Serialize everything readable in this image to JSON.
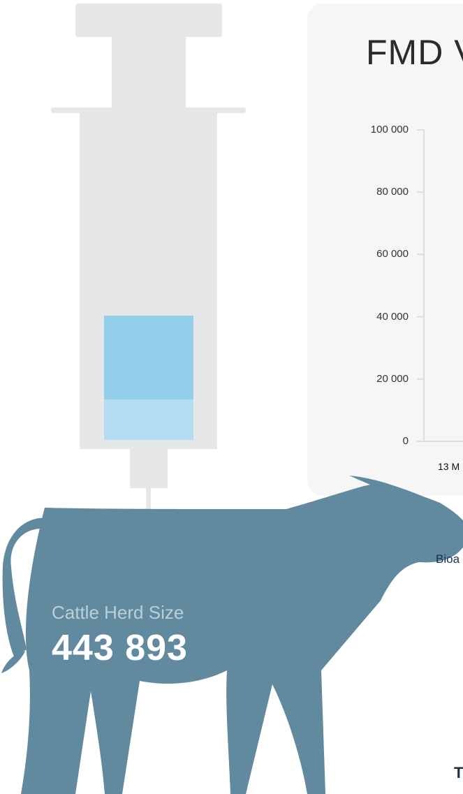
{
  "chart_data": {
    "type": "line",
    "title": "FMD V",
    "ylim": [
      0,
      100000
    ],
    "yticks": [
      0,
      20000,
      40000,
      60000,
      80000,
      100000
    ],
    "ytick_labels": [
      "0",
      "20 000",
      "40 000",
      "60 000",
      "80 000",
      "100 000"
    ],
    "x_tick_labels": [
      "13 M"
    ],
    "grid": false,
    "series": []
  },
  "cattle": {
    "label": "Cattle Herd Size",
    "value": "443 893"
  },
  "side_caption": "Bioa",
  "bottom_caption": "T",
  "colors": {
    "syringe": "#e6e7e9",
    "vaccine_dark": "#93cfeb",
    "vaccine_light": "#b3dcf0",
    "cow": "#628a9e",
    "panel": "#f6f6f6",
    "axis": "#dddddd"
  },
  "icons": [
    "syringe-icon",
    "cow-icon"
  ]
}
